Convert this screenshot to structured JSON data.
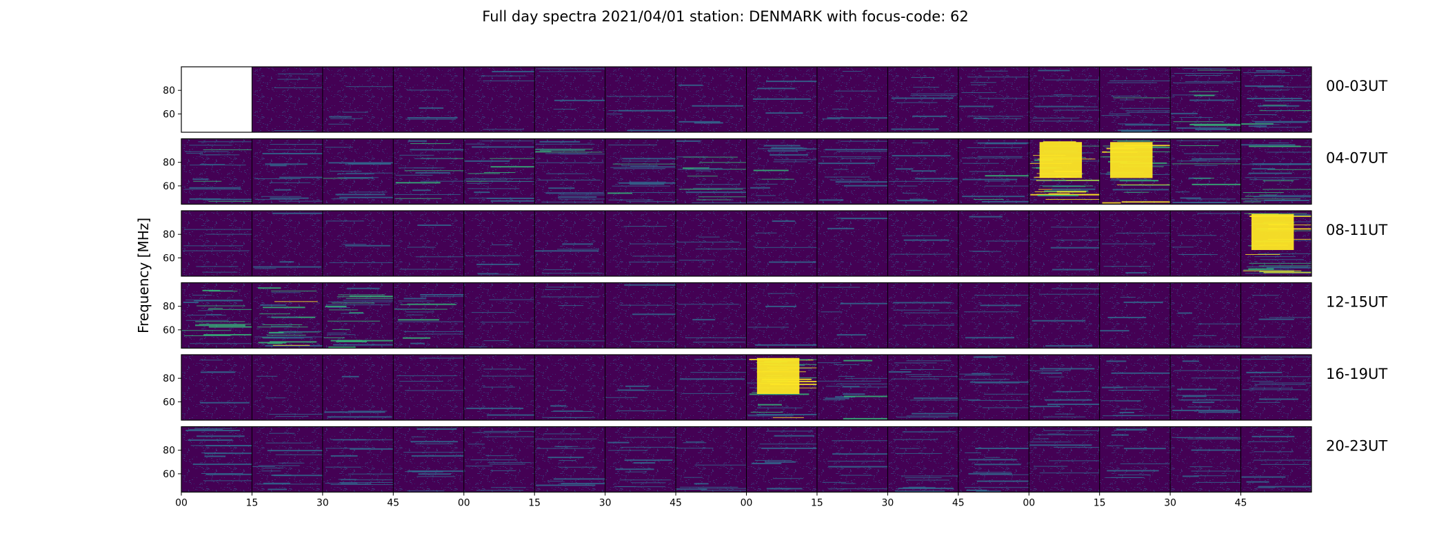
{
  "chart_data": {
    "type": "heatmap",
    "title": "Full day spectra 2021/04/01 station: DENMARK with focus-code: 62",
    "ylabel": "Frequency [MHz]",
    "colormap": [
      "#440154",
      "#31688e",
      "#35b779",
      "#fde725"
    ],
    "background": "#440154",
    "y_ticks": [
      "80",
      "60"
    ],
    "x_ticks": [
      "00",
      "15",
      "30",
      "45",
      "00",
      "15",
      "30",
      "45",
      "00",
      "15",
      "30",
      "45",
      "00",
      "15",
      "30",
      "45"
    ],
    "rows": [
      {
        "label": "00-03UT",
        "intensity": [
          0,
          0.1,
          0.12,
          0.1,
          0.1,
          0.12,
          0.12,
          0.1,
          0.1,
          0.12,
          0.2,
          0.25,
          0.22,
          0.4,
          0.45,
          0.5
        ]
      },
      {
        "label": "04-07UT",
        "intensity": [
          0.4,
          0.35,
          0.35,
          0.4,
          0.45,
          0.45,
          0.4,
          0.45,
          0.4,
          0.3,
          0.3,
          0.35,
          0.95,
          0.8,
          0.4,
          0.6
        ]
      },
      {
        "label": "08-11UT",
        "intensity": [
          0.15,
          0.1,
          0.1,
          0.1,
          0.12,
          0.12,
          0.1,
          0.1,
          0.1,
          0.1,
          0.1,
          0.1,
          0.1,
          0.1,
          0.12,
          0.85
        ]
      },
      {
        "label": "12-15UT",
        "intensity": [
          0.55,
          0.7,
          0.6,
          0.4,
          0.12,
          0.12,
          0.1,
          0.1,
          0.1,
          0.1,
          0.1,
          0.1,
          0.1,
          0.1,
          0.1,
          0.1
        ]
      },
      {
        "label": "16-19UT",
        "intensity": [
          0.1,
          0.1,
          0.1,
          0.1,
          0.12,
          0.15,
          0.12,
          0.1,
          0.9,
          0.4,
          0.3,
          0.3,
          0.3,
          0.3,
          0.3,
          0.3
        ]
      },
      {
        "label": "20-23UT",
        "intensity": [
          0.35,
          0.35,
          0.35,
          0.3,
          0.3,
          0.3,
          0.3,
          0.25,
          0.25,
          0.25,
          0.3,
          0.3,
          0.25,
          0.25,
          0.25,
          0.25
        ]
      }
    ]
  }
}
